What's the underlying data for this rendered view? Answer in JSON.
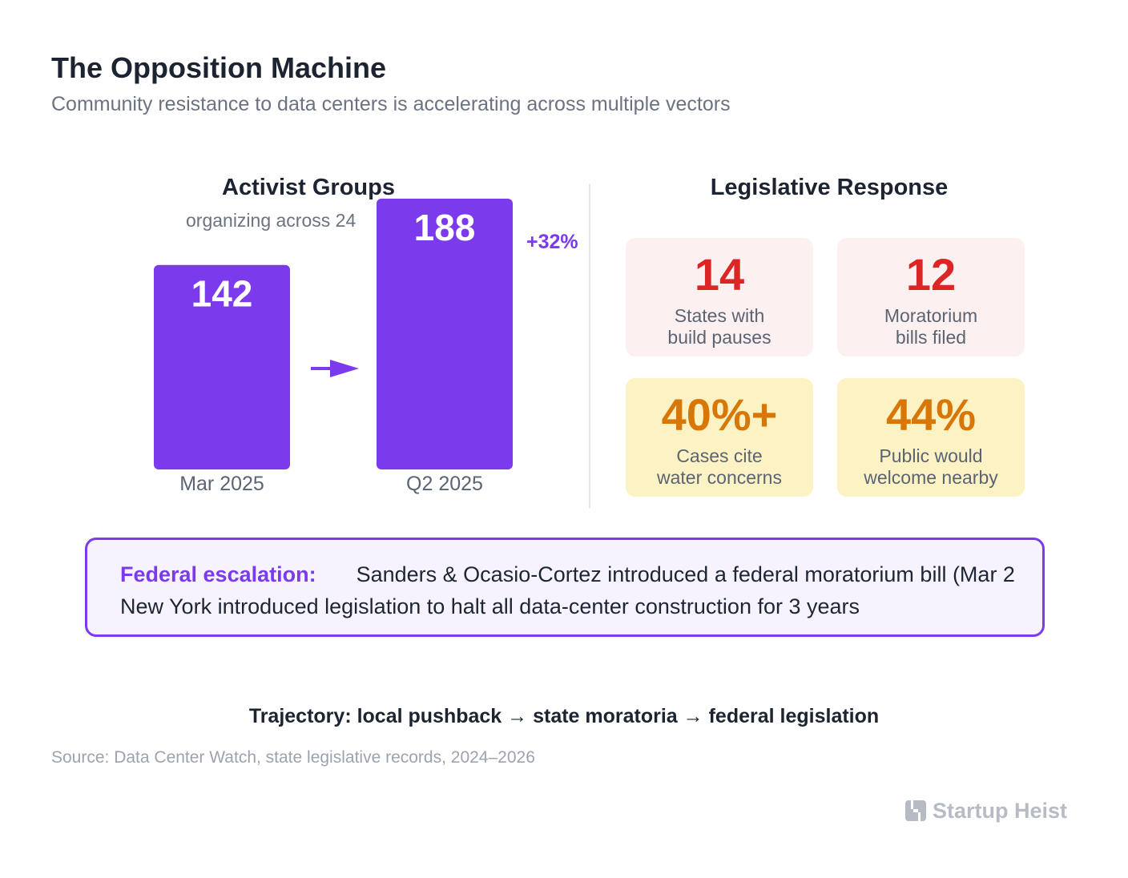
{
  "header": {
    "title": "The Opposition Machine",
    "subtitle": "Community resistance to data centers is accelerating across multiple vectors"
  },
  "activist": {
    "title": "Activist Groups",
    "subtitle": "organizing across 24",
    "change_label": "+32%"
  },
  "chart_data": {
    "type": "bar",
    "title": "Activist Groups",
    "categories": [
      "Mar 2025",
      "Q2 2025"
    ],
    "values": [
      142,
      188
    ],
    "value_labels": [
      "142",
      "188"
    ],
    "annotation": "+32%",
    "color": "#7c3aed",
    "ylim": [
      0,
      188
    ],
    "grid": false
  },
  "legislative": {
    "title": "Legislative Response",
    "cards": [
      {
        "value": "14",
        "label_line1": "States with",
        "label_line2": "build pauses",
        "tone": "red"
      },
      {
        "value": "12",
        "label_line1": "Moratorium",
        "label_line2": "bills filed",
        "tone": "red"
      },
      {
        "value": "40%+",
        "label_line1": "Cases cite",
        "label_line2": "water concerns",
        "tone": "amber"
      },
      {
        "value": "44%",
        "label_line1": "Public would",
        "label_line2": "welcome nearby",
        "tone": "amber"
      }
    ]
  },
  "callout": {
    "label": "Federal escalation:",
    "line1": "Sanders & Ocasio-Cortez introduced a federal moratorium bill (Mar 2",
    "line2": "New York introduced legislation to halt all data-center construction for 3 years"
  },
  "trajectory": "Trajectory: local pushback → state moratoria → federal legislation",
  "source": "Source: Data Center Watch, state legislative records, 2024–2026",
  "brand": {
    "name": "Startup Heist",
    "logo_icon": "h-block-logo-icon"
  },
  "colors": {
    "accent": "#7c3aed",
    "red": "#dc2626",
    "amber": "#d97706"
  }
}
